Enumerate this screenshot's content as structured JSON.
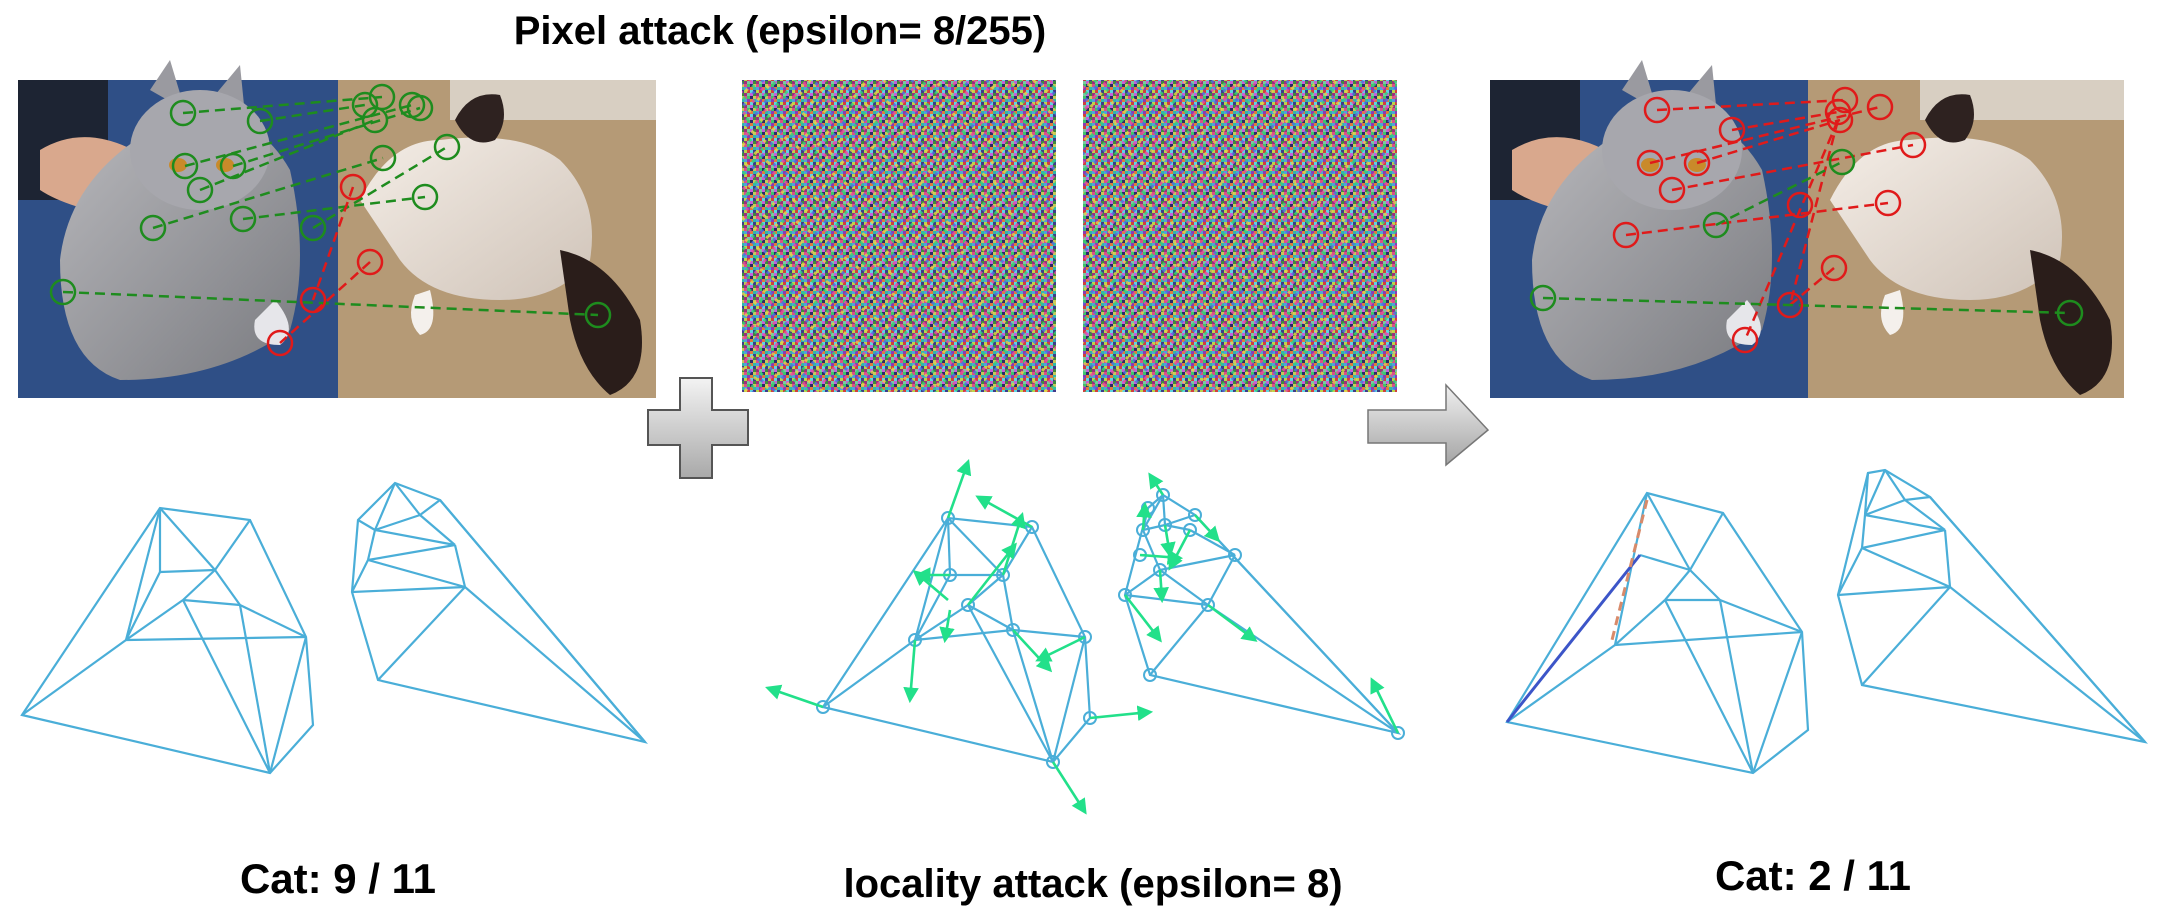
{
  "header": {
    "title": "Pixel attack (epsilon= 8/255)"
  },
  "footer": {
    "left_label": "Cat: 9 / 11",
    "middle_label": "locality attack (epsilon= 8)",
    "right_label": "Cat: 2 / 11"
  },
  "colors": {
    "match_correct": "#1e8c1e",
    "match_wrong": "#e01a1a",
    "mesh": "#4aaed8",
    "displacement_arrow": "#22e08a",
    "plus_fill": "#cfcfcf",
    "arrow_fill": "#c8c8c8"
  },
  "panels": {
    "left": {
      "name": "clean-matching",
      "correct_matches": 9,
      "total_matches": 11
    },
    "right": {
      "name": "attacked-matching",
      "correct_matches": 2,
      "total_matches": 11
    }
  },
  "icons": {
    "plus": "plus-icon",
    "arrow": "right-arrow-icon"
  }
}
